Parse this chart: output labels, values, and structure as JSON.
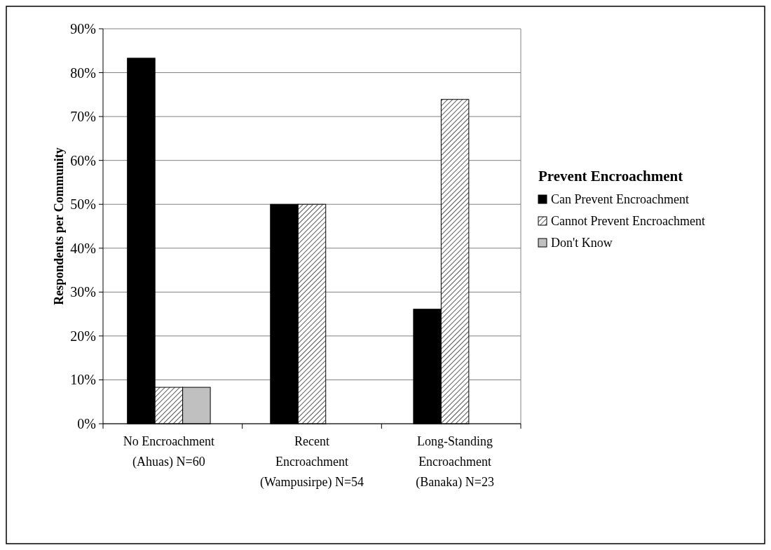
{
  "chart_data": {
    "type": "bar",
    "ylabel": "Respondents per Community",
    "legend_title": "Prevent Encroachment",
    "categories": [
      "No Encroachment (Ahuas) N=60",
      "Recent Encroachment (Wampusirpe) N=54",
      "Long-Standing Encroachment (Banaka) N=23"
    ],
    "series": [
      {
        "name": "Can Prevent Encroachment",
        "color": "#000000",
        "values": [
          83.3,
          50,
          26.1
        ]
      },
      {
        "name": "Cannot Prevent Encroachment",
        "color": "#000000",
        "values": [
          8.3,
          50,
          73.9
        ]
      },
      {
        "name": "Don't Know",
        "color": "#c0c0c0",
        "values": [
          8.3,
          null,
          null
        ]
      }
    ],
    "ylim": [
      0,
      90
    ],
    "yticks": [
      {
        "value": 0,
        "label": "0%"
      },
      {
        "value": 10,
        "label": "10%"
      },
      {
        "value": 20,
        "label": "20%"
      },
      {
        "value": 30,
        "label": "30%"
      },
      {
        "value": 40,
        "label": "40%"
      },
      {
        "value": 50,
        "label": "50%"
      },
      {
        "value": 60,
        "label": "60%"
      },
      {
        "value": 70,
        "label": "70%"
      },
      {
        "value": 80,
        "label": "80%"
      },
      {
        "value": 90,
        "label": "90%"
      }
    ],
    "grid": "y",
    "legend": "right"
  }
}
